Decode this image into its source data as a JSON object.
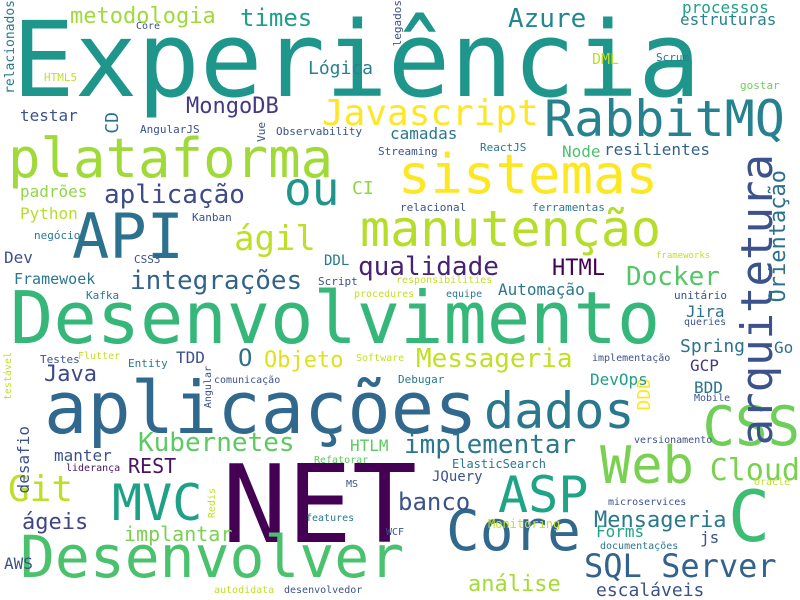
{
  "word_cloud": {
    "words": [
      {
        "text": "Experiência",
        "color": "#1f968b"
      },
      {
        "text": "NET",
        "color": "#440154"
      },
      {
        "text": "Desenvolvimento",
        "color": "#35b779"
      },
      {
        "text": "aplicações",
        "color": "#31688e"
      },
      {
        "text": "plataforma",
        "color": "#a0da39"
      },
      {
        "text": "sistemas",
        "color": "#fde725"
      },
      {
        "text": "manutenção",
        "color": "#b5de2b"
      },
      {
        "text": "API",
        "color": "#2c728e"
      },
      {
        "text": "Desenvolver",
        "color": "#4ac16d"
      },
      {
        "text": "Core",
        "color": "#31688e"
      },
      {
        "text": "Web",
        "color": "#7ad151"
      },
      {
        "text": "dados",
        "color": "#2a788e"
      },
      {
        "text": "RabbitMQ",
        "color": "#26828e"
      },
      {
        "text": "CSS",
        "color": "#6ece58"
      },
      {
        "text": "MVC",
        "color": "#1fa188"
      },
      {
        "text": "ASP",
        "color": "#20a486"
      },
      {
        "text": "C",
        "color": "#3dbc74"
      },
      {
        "text": "ou",
        "color": "#1f958b"
      },
      {
        "text": "arquitetura",
        "color": "#3b528b"
      },
      {
        "text": "Javascript",
        "color": "#fde725"
      },
      {
        "text": "Git",
        "color": "#bddf26"
      },
      {
        "text": "SQL Server",
        "color": "#33638d"
      },
      {
        "text": "Cloud",
        "color": "#7ad151"
      },
      {
        "text": "Docker",
        "color": "#54c568"
      },
      {
        "text": "ágil",
        "color": "#bddf26"
      },
      {
        "text": "qualidade",
        "color": "#482173"
      },
      {
        "text": "integrações",
        "color": "#33638d"
      },
      {
        "text": "aplicação",
        "color": "#3e4a89"
      },
      {
        "text": "implementar",
        "color": "#2a788e"
      },
      {
        "text": "Kubernetes",
        "color": "#5ec962"
      },
      {
        "text": "Messageria",
        "color": "#c2df23"
      },
      {
        "text": "Azure",
        "color": "#23888e"
      },
      {
        "text": "banco",
        "color": "#3b528b"
      },
      {
        "text": "Mensageria",
        "color": "#2a788e"
      },
      {
        "text": "Orientação",
        "color": "#2c728e"
      },
      {
        "text": "HTML",
        "color": "#440154"
      },
      {
        "text": "MongoDB",
        "color": "#443983"
      },
      {
        "text": "times",
        "color": "#1f9e89"
      },
      {
        "text": "metodologia",
        "color": "#9fda3a"
      },
      {
        "text": "Java",
        "color": "#3e4989"
      },
      {
        "text": "Objeto",
        "color": "#dde318"
      },
      {
        "text": "análise",
        "color": "#a5db36"
      },
      {
        "text": "escaláveis",
        "color": "#3b528b"
      },
      {
        "text": "ágeis",
        "color": "#404588"
      },
      {
        "text": "REST",
        "color": "#471365"
      },
      {
        "text": "implantar",
        "color": "#7ad151"
      },
      {
        "text": "O",
        "color": "#2c728e"
      },
      {
        "text": "Lógica",
        "color": "#26828e"
      },
      {
        "text": "processos",
        "color": "#1fa188"
      },
      {
        "text": "estruturas",
        "color": "#26828e"
      },
      {
        "text": "testar",
        "color": "#3b528b"
      },
      {
        "text": "CD",
        "color": "#2c728e"
      },
      {
        "text": "camadas",
        "color": "#2a788e"
      },
      {
        "text": "Node",
        "color": "#4ac16d"
      },
      {
        "text": "resilientes",
        "color": "#33638d"
      },
      {
        "text": "padrões",
        "color": "#8fd744"
      },
      {
        "text": "Python",
        "color": "#b5de2b"
      },
      {
        "text": "CI",
        "color": "#8fd744"
      },
      {
        "text": "DDL",
        "color": "#2a788e"
      },
      {
        "text": "Dev",
        "color": "#3b528b"
      },
      {
        "text": "Framewoek",
        "color": "#2a788e"
      },
      {
        "text": "Jira",
        "color": "#2c728e"
      },
      {
        "text": "Spring",
        "color": "#2c728e"
      },
      {
        "text": "Go",
        "color": "#2c728e"
      },
      {
        "text": "GCP",
        "color": "#443983"
      },
      {
        "text": "BDD",
        "color": "#2c728e"
      },
      {
        "text": "DDD",
        "color": "#fde725"
      },
      {
        "text": "DevOps",
        "color": "#1f9e89"
      },
      {
        "text": "TDD",
        "color": "#3b528b"
      },
      {
        "text": "Automação",
        "color": "#2a788e"
      },
      {
        "text": "desafio",
        "color": "#3b528b"
      },
      {
        "text": "manter",
        "color": "#3b528b"
      },
      {
        "text": "HTLM",
        "color": "#5ec962"
      },
      {
        "text": "JQuery",
        "color": "#3b528b"
      },
      {
        "text": "Forms",
        "color": "#20a486"
      },
      {
        "text": "js",
        "color": "#3b528b"
      },
      {
        "text": "DML",
        "color": "#bddf26"
      },
      {
        "text": "Scrum",
        "color": "#2a788e"
      },
      {
        "text": "Observability",
        "color": "#3b528b"
      },
      {
        "text": "AngularJS",
        "color": "#3b528b"
      },
      {
        "text": "Streaming",
        "color": "#3b528b"
      },
      {
        "text": "ReactJS",
        "color": "#2a788e"
      },
      {
        "text": "relacionados",
        "color": "#2a788e"
      },
      {
        "text": "legados",
        "color": "#3b528b"
      },
      {
        "text": "HTML5",
        "color": "#c2df23"
      },
      {
        "text": "Core",
        "color": "#3b528b"
      },
      {
        "text": "gostar",
        "color": "#6ece58"
      },
      {
        "text": "Vue",
        "color": "#3b528b"
      },
      {
        "text": "relacional",
        "color": "#3b528b"
      },
      {
        "text": "ferramentas",
        "color": "#2a788e"
      },
      {
        "text": "Kanban",
        "color": "#3b528b"
      },
      {
        "text": "negócio",
        "color": "#2a788e"
      },
      {
        "text": "CSS3",
        "color": "#3b528b"
      },
      {
        "text": "Kafka",
        "color": "#2a788e"
      },
      {
        "text": "Script",
        "color": "#3b528b"
      },
      {
        "text": "procedures",
        "color": "#c2df23"
      },
      {
        "text": "equipe",
        "color": "#2a788e"
      },
      {
        "text": "responsibilities",
        "color": "#c2df23"
      },
      {
        "text": "frameworks",
        "color": "#c2df23"
      },
      {
        "text": "unitário",
        "color": "#3b528b"
      },
      {
        "text": "queries",
        "color": "#3b528b"
      },
      {
        "text": "Testes",
        "color": "#3b528b"
      },
      {
        "text": "Flutter",
        "color": "#c2df23"
      },
      {
        "text": "Entity",
        "color": "#2a788e"
      },
      {
        "text": "Software",
        "color": "#c2df23"
      },
      {
        "text": "implementação",
        "color": "#3b528b"
      },
      {
        "text": "testável",
        "color": "#c2df23"
      },
      {
        "text": "Angular",
        "color": "#3b528b"
      },
      {
        "text": "comunicação",
        "color": "#3b528b"
      },
      {
        "text": "Debugar",
        "color": "#2a788e"
      },
      {
        "text": "Mobile",
        "color": "#3b528b"
      },
      {
        "text": "versionamento",
        "color": "#3b528b"
      },
      {
        "text": "liderança",
        "color": "#471365"
      },
      {
        "text": "Refatorar",
        "color": "#5ec962"
      },
      {
        "text": "ElasticSearch",
        "color": "#2a788e"
      },
      {
        "text": "Oracle",
        "color": "#c2df23"
      },
      {
        "text": "MS",
        "color": "#3b528b"
      },
      {
        "text": "Redis",
        "color": "#c2df23"
      },
      {
        "text": "features",
        "color": "#2a788e"
      },
      {
        "text": "microservices",
        "color": "#3b528b"
      },
      {
        "text": "WCF",
        "color": "#3b528b"
      },
      {
        "text": "Monitoring",
        "color": "#c2df23"
      },
      {
        "text": "documentações",
        "color": "#2a788e"
      },
      {
        "text": "AWS",
        "color": "#3b528b"
      },
      {
        "text": "autodidata",
        "color": "#c2df23"
      },
      {
        "text": "desenvolvedor",
        "color": "#3b528b"
      }
    ]
  }
}
